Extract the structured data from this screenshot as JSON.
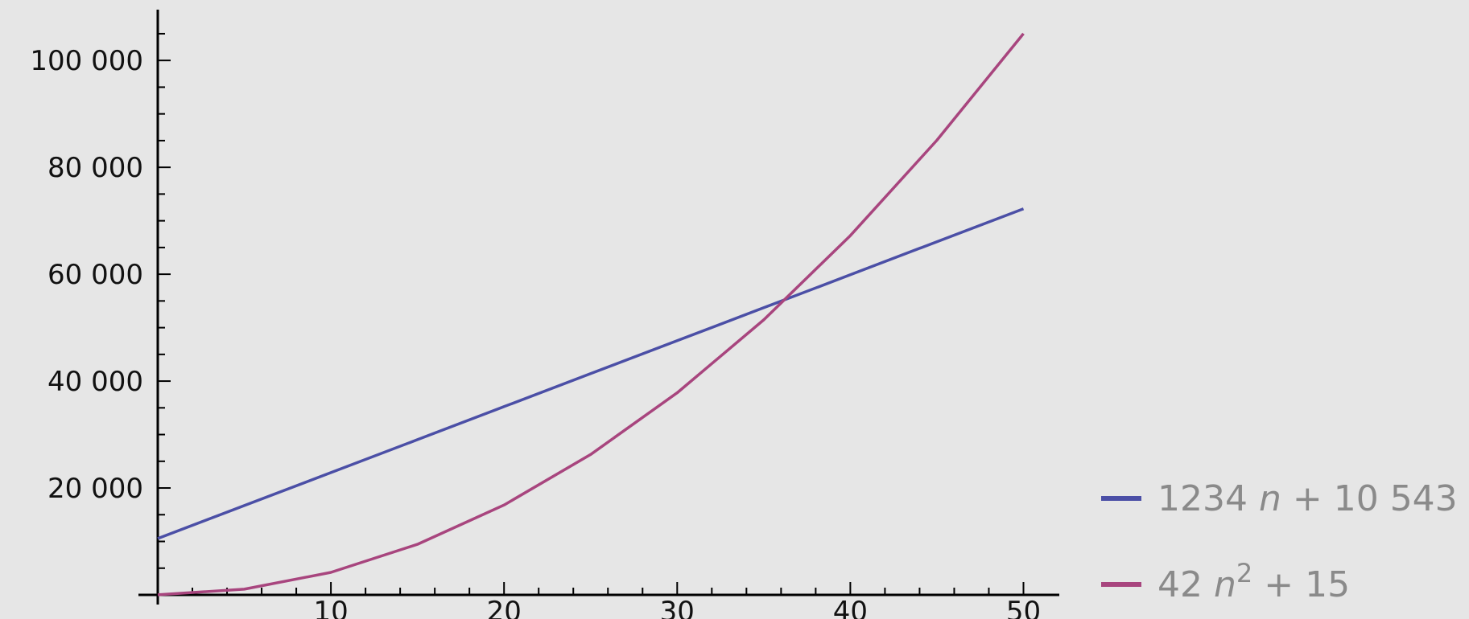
{
  "chart_data": {
    "type": "line",
    "title": "",
    "xlabel": "",
    "ylabel": "",
    "xlim": [
      0,
      51
    ],
    "ylim": [
      0,
      108000
    ],
    "x_ticks": [
      10,
      20,
      30,
      40,
      50
    ],
    "x_tick_labels": [
      "10",
      "20",
      "30",
      "40",
      "50"
    ],
    "y_ticks": [
      20000,
      40000,
      60000,
      80000,
      100000
    ],
    "y_tick_labels": [
      "20 000",
      "40 000",
      "60 000",
      "80 000",
      "100 000"
    ],
    "grid": false,
    "legend_position": "bottom-right",
    "series": [
      {
        "name": "1234 n + 10 543",
        "color": "#4b4fa6",
        "x": [
          0,
          5,
          10,
          15,
          20,
          25,
          30,
          35,
          40,
          45,
          50
        ],
        "y": [
          10543,
          16713,
          22883,
          29053,
          35223,
          41393,
          47563,
          53733,
          59903,
          66073,
          72243
        ]
      },
      {
        "name": "42 n² + 15",
        "color": "#a8457e",
        "x": [
          0,
          5,
          10,
          15,
          20,
          25,
          30,
          35,
          40,
          45,
          50
        ],
        "y": [
          15,
          1065,
          4215,
          9465,
          16815,
          26265,
          37815,
          51465,
          67215,
          85065,
          105015
        ]
      }
    ]
  },
  "legend": [
    {
      "coef": "1234",
      "var": "n",
      "sup": "",
      "rest": " + 10 543"
    },
    {
      "coef": "42",
      "var": "n",
      "sup": "2",
      "rest": " + 15"
    }
  ]
}
